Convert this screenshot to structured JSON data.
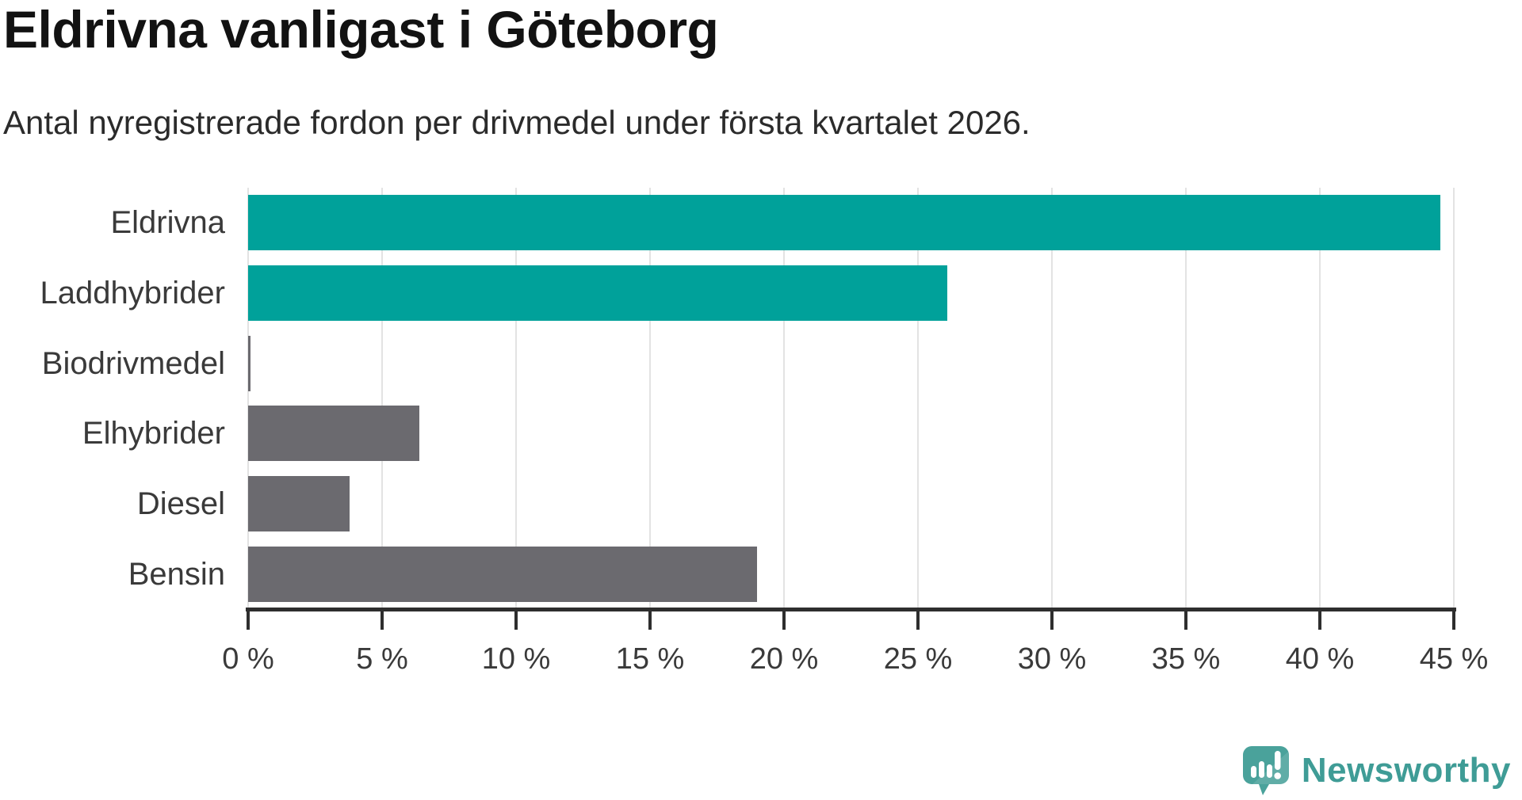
{
  "title": "Eldrivna vanligast i Göteborg",
  "subtitle": "Antal nyregistrerade fordon per drivmedel under första kvartalet 2026.",
  "chart_data": {
    "type": "bar",
    "orientation": "horizontal",
    "title": "Eldrivna vanligast i Göteborg",
    "subtitle": "Antal nyregistrerade fordon per drivmedel under första kvartalet 2026.",
    "categories": [
      "Eldrivna",
      "Laddhybrider",
      "Biodrivmedel",
      "Elhybrider",
      "Diesel",
      "Bensin"
    ],
    "values": [
      44.5,
      26.1,
      0.1,
      6.4,
      3.8,
      19.0
    ],
    "unit": "%",
    "bar_colors": [
      "#00a19a",
      "#00a19a",
      "#6b6a6f",
      "#6b6a6f",
      "#6b6a6f",
      "#6b6a6f"
    ],
    "highlight_color": "#00a19a",
    "default_color": "#6b6a6f",
    "xlim": [
      0,
      45
    ],
    "x_ticks": [
      0,
      5,
      10,
      15,
      20,
      25,
      30,
      35,
      40,
      45
    ],
    "x_tick_labels": [
      "0 %",
      "5 %",
      "10 %",
      "15 %",
      "20 %",
      "25 %",
      "30 %",
      "35 %",
      "40 %",
      "45 %"
    ],
    "grid": "vertical-gridlines",
    "legend": "none"
  },
  "branding": {
    "logo_text": "Newsworthy",
    "logo_color": "#3f9c96",
    "logo_icon": "newsworthy-speech-bubble-barchart-icon",
    "icon_color": "#4aa29b"
  }
}
